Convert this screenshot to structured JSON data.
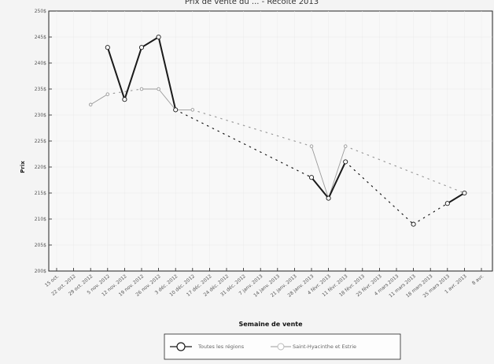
{
  "chart_data": {
    "type": "line",
    "title": "Prix de vente du ... - Récolte 2013",
    "xlabel": "Semaine de vente",
    "ylabel": "Prix",
    "ylim": [
      200,
      250
    ],
    "y_ticks": [
      "200$",
      "205$",
      "210$",
      "215$",
      "220$",
      "225$",
      "230$",
      "235$",
      "240$",
      "245$",
      "250$"
    ],
    "categories": [
      "15 oct.",
      "22 oct. 2012",
      "29 oct. 2012",
      "5 nov. 2012",
      "12 nov. 2012",
      "19 nov. 2012",
      "26 nov. 2012",
      "3 déc. 2012",
      "10 déc. 2012",
      "17 déc. 2012",
      "24 déc. 2012",
      "31 déc. 2012",
      "7 janv. 2013",
      "14 janv. 2013",
      "21 janv. 2013",
      "28 janv. 2013",
      "4 févr. 2013",
      "11 févr. 2013",
      "18 févr. 2013",
      "25 févr. 2013",
      "4 mars 2013",
      "11 mars 2013",
      "18 mars 2013",
      "25 mars 2013",
      "1 avr. 2013",
      "8 avr."
    ],
    "legend_position": "bottom",
    "grid": true,
    "series": [
      {
        "name": "Toutes les régions",
        "color": "#1a1a1a",
        "values": [
          null,
          null,
          null,
          243,
          233,
          243,
          245,
          231,
          null,
          null,
          null,
          null,
          null,
          null,
          null,
          218,
          214,
          221,
          null,
          null,
          null,
          209,
          null,
          213,
          215,
          null
        ]
      },
      {
        "name": "Saint-Hyacinthe et Estrie",
        "color": "#9a9a9a",
        "values": [
          null,
          null,
          232,
          234,
          null,
          235,
          235,
          231,
          231,
          null,
          null,
          null,
          null,
          null,
          null,
          224,
          214,
          224,
          null,
          null,
          null,
          null,
          null,
          null,
          215,
          null
        ]
      }
    ]
  }
}
